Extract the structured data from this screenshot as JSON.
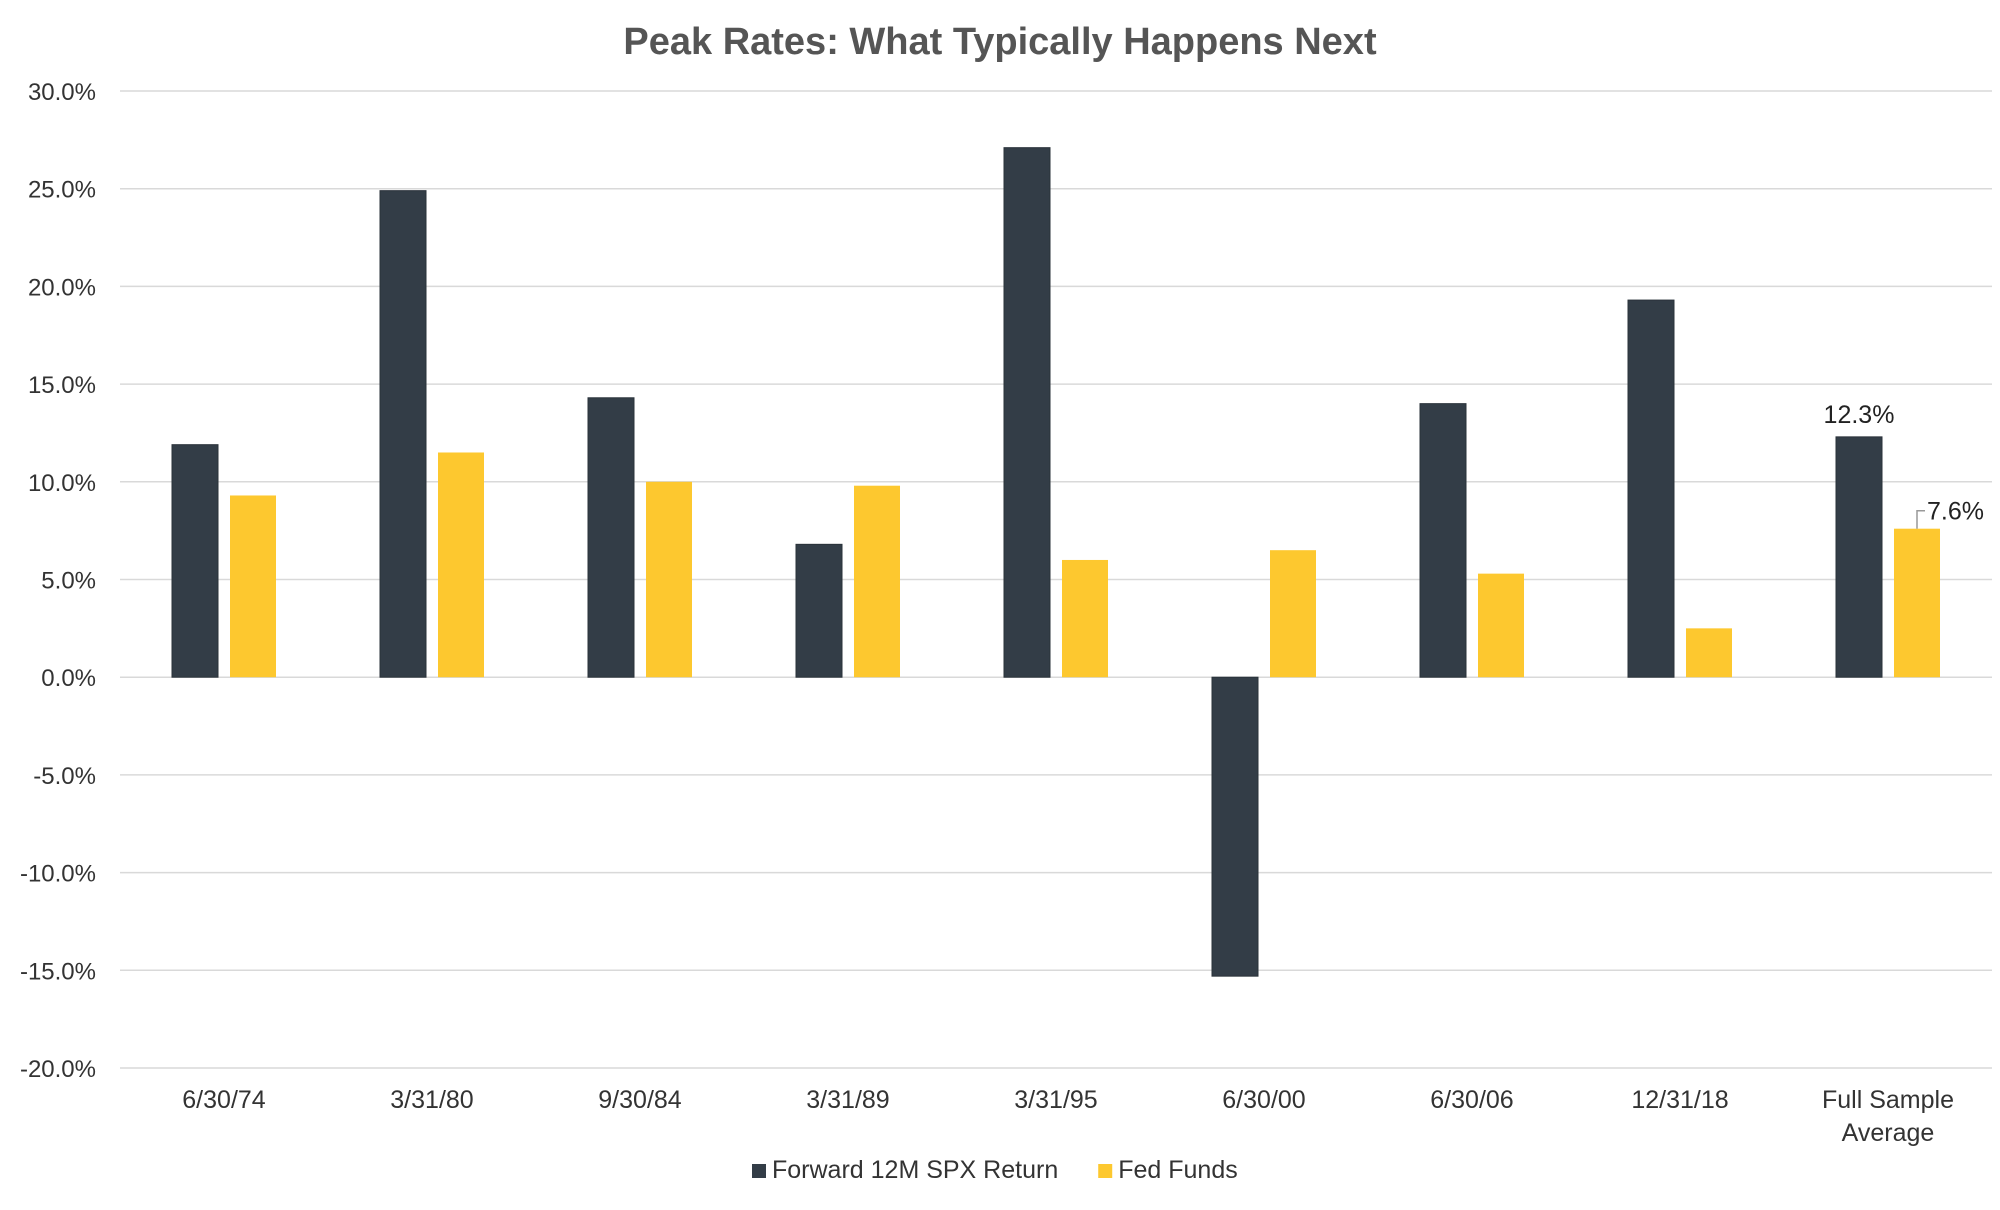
{
  "chart_data": {
    "type": "bar",
    "title": "Peak Rates: What Typically Happens Next",
    "categories": [
      "6/30/74",
      "3/31/80",
      "9/30/84",
      "3/31/89",
      "3/31/95",
      "6/30/00",
      "6/30/06",
      "12/31/18",
      "Full Sample Average"
    ],
    "category_lines": [
      [
        "6/30/74"
      ],
      [
        "3/31/80"
      ],
      [
        "9/30/84"
      ],
      [
        "3/31/89"
      ],
      [
        "3/31/95"
      ],
      [
        "6/30/00"
      ],
      [
        "6/30/06"
      ],
      [
        "12/31/18"
      ],
      [
        "Full Sample",
        "Average"
      ]
    ],
    "series": [
      {
        "name": "Forward 12M SPX Return",
        "color": "#333d47",
        "values": [
          11.9,
          24.9,
          14.3,
          6.8,
          27.1,
          -15.3,
          14.0,
          19.3,
          12.3
        ]
      },
      {
        "name": "Fed Funds",
        "color": "#fdc82f",
        "values": [
          9.3,
          11.5,
          10.0,
          9.8,
          6.0,
          6.5,
          5.3,
          2.5,
          7.6
        ]
      }
    ],
    "data_labels": [
      {
        "series": 0,
        "category": 8,
        "text": "12.3%"
      },
      {
        "series": 1,
        "category": 8,
        "text": "7.6%"
      }
    ],
    "ylim": [
      -20,
      30
    ],
    "yticks": [
      30,
      25,
      20,
      15,
      10,
      5,
      0,
      -5,
      -10,
      -15,
      -20
    ],
    "ytick_labels": [
      "30.0%",
      "25.0%",
      "20.0%",
      "15.0%",
      "10.0%",
      "5.0%",
      "0.0%",
      "-5.0%",
      "-10.0%",
      "-15.0%",
      "-20.0%"
    ],
    "xlabel": "",
    "ylabel": "",
    "grid": true,
    "legend_position": "bottom-center",
    "colors": {
      "gridline": "#d9d9d9",
      "zero_line": "#d9d9d9",
      "title": "#555555"
    }
  }
}
